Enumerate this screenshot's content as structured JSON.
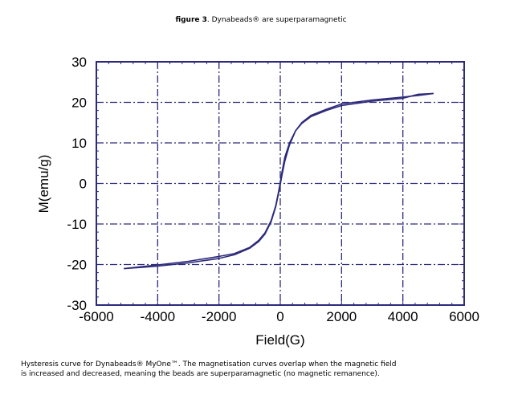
{
  "header": {
    "figure_label": "figure 3",
    "figure_title": ". Dynabeads® are superparamagnetic"
  },
  "caption": {
    "line1": "Hysteresis curve for Dynabeads® MyOne™. The magnetisation curves overlap when the magnetic field",
    "line2": "is increased and decreased, meaning the beads are superparamagnetic (no magnetic remanence)."
  },
  "chart_data": {
    "type": "line",
    "title": "",
    "xlabel": "Field(G)",
    "ylabel": "M(emu/g)",
    "xlim": [
      -6000,
      6000
    ],
    "ylim": [
      -30,
      30
    ],
    "xticks": [
      -6000,
      -4000,
      -2000,
      0,
      2000,
      4000,
      6000
    ],
    "yticks": [
      30,
      20,
      10,
      0,
      -10,
      -20,
      -30
    ],
    "grid": true,
    "colors": {
      "line": "#2d2a7a",
      "axes": "#2d2a7a",
      "grid": "#2d2a7a"
    },
    "series": [
      {
        "x": [
          -5100,
          -4500,
          -4000,
          -3000,
          -2000,
          -1500,
          -1000,
          -700,
          -500,
          -300,
          -150,
          -50,
          0,
          50,
          150,
          300,
          500,
          700,
          1000,
          1500,
          2000,
          3000,
          4000,
          4500,
          5000
        ],
        "y": [
          -21.0,
          -20.7,
          -20.4,
          -19.6,
          -18.5,
          -17.6,
          -16.0,
          -14.3,
          -12.5,
          -9.5,
          -5.8,
          -2.2,
          -0.3,
          1.8,
          5.5,
          9.5,
          13.0,
          15.0,
          16.8,
          18.3,
          19.6,
          20.6,
          21.3,
          21.7,
          22.2
        ]
      },
      {
        "x": [
          5000,
          4500,
          4000,
          3000,
          2000,
          1500,
          1000,
          700,
          500,
          300,
          150,
          50,
          0,
          -50,
          -150,
          -300,
          -500,
          -700,
          -1000,
          -1500,
          -2000,
          -3000,
          -4000,
          -4500,
          -5100
        ],
        "y": [
          22.2,
          22.0,
          21.0,
          20.3,
          19.2,
          18.0,
          16.5,
          14.8,
          13.0,
          10.0,
          6.5,
          2.6,
          0.3,
          -1.8,
          -5.5,
          -9.2,
          -12.2,
          -14.0,
          -15.8,
          -17.3,
          -18.0,
          -19.2,
          -20.1,
          -20.5,
          -21.0
        ]
      }
    ]
  }
}
